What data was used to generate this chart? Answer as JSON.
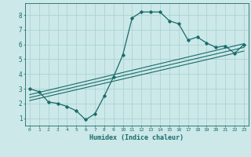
{
  "xlabel": "Humidex (Indice chaleur)",
  "ylabel": "",
  "background_color": "#cce8e8",
  "line_color": "#1a6b6b",
  "grid_color": "#aad4d4",
  "xlim": [
    -0.5,
    23.5
  ],
  "ylim": [
    0.5,
    8.8
  ],
  "xticks": [
    0,
    1,
    2,
    3,
    4,
    5,
    6,
    7,
    8,
    9,
    10,
    11,
    12,
    13,
    14,
    15,
    16,
    17,
    18,
    19,
    20,
    21,
    22,
    23
  ],
  "yticks": [
    1,
    2,
    3,
    4,
    5,
    6,
    7,
    8
  ],
  "main_x": [
    0,
    1,
    2,
    3,
    4,
    5,
    6,
    7,
    8,
    9,
    10,
    11,
    12,
    13,
    14,
    15,
    16,
    17,
    18,
    19,
    20,
    21,
    22,
    23
  ],
  "main_y": [
    3.0,
    2.8,
    2.1,
    2.0,
    1.8,
    1.5,
    0.9,
    1.3,
    2.5,
    3.8,
    5.3,
    7.8,
    8.2,
    8.2,
    8.2,
    7.6,
    7.4,
    6.3,
    6.5,
    6.1,
    5.8,
    5.9,
    5.4,
    6.0
  ],
  "line1_x": [
    0,
    23
  ],
  "line1_y": [
    2.6,
    6.05
  ],
  "line2_x": [
    0,
    23
  ],
  "line2_y": [
    2.4,
    5.8
  ],
  "line3_x": [
    0,
    23
  ],
  "line3_y": [
    2.2,
    5.55
  ]
}
